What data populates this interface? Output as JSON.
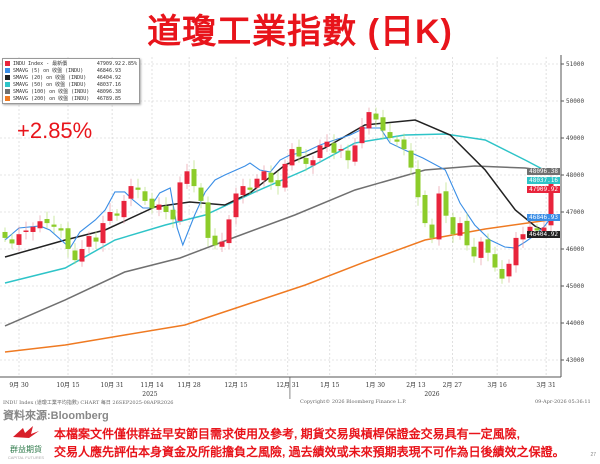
{
  "title": "道瓊工業指數 (日K)",
  "change_label": "+2.85%",
  "legend": [
    {
      "label": "INDU Index - 最新價",
      "value": "47909.92",
      "pct": "2.85%",
      "color": "#e8243c"
    },
    {
      "label": "SMAVG (5) on 收盤 (INDU)",
      "value": "46846.93",
      "pct": "",
      "color": "#3a8ee6"
    },
    {
      "label": "SMAVG (20) on 收盤 (INDU)",
      "value": "46404.92",
      "pct": "",
      "color": "#222222"
    },
    {
      "label": "SMAVG (50) on 收盤 (INDU)",
      "value": "48037.16",
      "pct": "",
      "color": "#2ec4c8"
    },
    {
      "label": "SMAVG (100) on 收盤 (INDU)",
      "value": "48096.38",
      "pct": "",
      "color": "#707070"
    },
    {
      "label": "SMAVG (200) on 收盤 (INDU)",
      "value": "46789.85",
      "pct": "",
      "color": "#ef7a22"
    }
  ],
  "price_tags": [
    {
      "text": "48096.38",
      "value": 48096.38,
      "color": "#707070"
    },
    {
      "text": "48037.16",
      "value": 48037.16,
      "color": "#2ec4c8"
    },
    {
      "text": "47909.92",
      "value": 47909.92,
      "color": "#e8243c"
    },
    {
      "text": "46846.93",
      "value": 46846.93,
      "color": "#3a8ee6"
    },
    {
      "text": "46404.92",
      "value": 46404.92,
      "color": "#222222"
    }
  ],
  "footer": {
    "chart_info": "INDU Index (道瓊工業平均指數) CHART 每日 26SEP2025-08APR2026",
    "copyright": "Copyright© 2026 Bloomberg Finance L.P.",
    "timestamp": "09-Apr-2026 05:36:11",
    "source": "資料來源:Bloomberg",
    "disclaimer1": "本檔案文件僅供群益早安節目需求使用及參考, 期貨交易與槓桿保證金交易具有一定風險,",
    "disclaimer2": "交易人應先評估本身資金及所能擔負之風險, 過去績效或未來預期表現不可作為日後績效之保證。",
    "logo_name": "群益期貨",
    "logo_en": "CAPITAL FUTURES",
    "page": "27"
  },
  "chart_data": {
    "type": "candlestick",
    "title": "道瓊工業指數 (日K)",
    "ylim": [
      42700,
      51200
    ],
    "yticks": [
      43000,
      44000,
      45000,
      46000,
      47000,
      48000,
      49000,
      50000,
      51000
    ],
    "xticks": [
      {
        "i": 2,
        "label": "9月 30"
      },
      {
        "i": 9,
        "label": "10月 15"
      },
      {
        "i": 15.3,
        "label": "10月 31"
      },
      {
        "i": 21,
        "label": "11月 14"
      },
      {
        "i": 26.3,
        "label": "11月 28"
      },
      {
        "i": 33,
        "label": "12月 15"
      },
      {
        "i": 40.4,
        "label": "12月 31"
      },
      {
        "i": 46.4,
        "label": "1月 15"
      },
      {
        "i": 52.9,
        "label": "1月 30"
      },
      {
        "i": 58.7,
        "label": "2月 13"
      },
      {
        "i": 63.9,
        "label": "2月 27"
      },
      {
        "i": 70.3,
        "label": "3月 16"
      },
      {
        "i": 77.3,
        "label": "3月 31"
      }
    ],
    "years": [
      {
        "i": 20.7,
        "label": "2025"
      },
      {
        "i": 61,
        "label": "2026"
      }
    ],
    "year_divider_i": 40.7,
    "closes": [
      46300,
      46150,
      46400,
      46500,
      46600,
      46750,
      46700,
      46600,
      46500,
      46000,
      45700,
      46000,
      46350,
      46200,
      46700,
      47000,
      46900,
      47300,
      47700,
      47600,
      47300,
      47100,
      47200,
      47000,
      46800,
      47800,
      48100,
      47700,
      47300,
      46300,
      46100,
      46200,
      46800,
      47500,
      47700,
      47600,
      47900,
      48100,
      47800,
      47700,
      48300,
      48700,
      48500,
      48300,
      48400,
      48800,
      48900,
      48600,
      48700,
      48400,
      48800,
      49300,
      49700,
      49500,
      49200,
      49000,
      48900,
      48700,
      48200,
      47400,
      46700,
      46300,
      47500,
      46900,
      46400,
      46700,
      46100,
      45800,
      46200,
      45900,
      45500,
      45200,
      45600,
      46300,
      46400,
      46600,
      46500,
      46580,
      47909.92
    ],
    "series": [
      {
        "name": "SMAVG (5)",
        "color": "#3a8ee6",
        "points": [
          [
            0,
            46243
          ],
          [
            2,
            46568
          ],
          [
            5,
            46622
          ],
          [
            6.4,
            46514
          ],
          [
            9.3,
            46027
          ],
          [
            10.7,
            46459
          ],
          [
            12.9,
            46784
          ],
          [
            14.3,
            47054
          ],
          [
            15.7,
            47541
          ],
          [
            17.1,
            47541
          ],
          [
            18.3,
            47324
          ],
          [
            19.7,
            47108
          ],
          [
            20.7,
            47108
          ],
          [
            22.1,
            47514
          ],
          [
            23.6,
            47649
          ],
          [
            24.6,
            46568
          ],
          [
            25.4,
            46108
          ],
          [
            27.1,
            46919
          ],
          [
            28.6,
            47541
          ],
          [
            30,
            47865
          ],
          [
            31.4,
            48000
          ],
          [
            34.3,
            48243
          ],
          [
            35,
            48324
          ],
          [
            36.4,
            48135
          ],
          [
            37.9,
            48081
          ],
          [
            39.3,
            48405
          ],
          [
            40.7,
            48541
          ],
          [
            42.9,
            48622
          ],
          [
            45,
            48811
          ],
          [
            47.1,
            48946
          ],
          [
            49.3,
            49081
          ],
          [
            51.4,
            49270
          ],
          [
            53.6,
            49270
          ],
          [
            55,
            48865
          ],
          [
            57.1,
            48676
          ],
          [
            59.7,
            48459
          ],
          [
            62.9,
            48135
          ],
          [
            65,
            47243
          ],
          [
            67.1,
            46649
          ],
          [
            69.3,
            46243
          ],
          [
            71.4,
            46054
          ],
          [
            72.9,
            46027
          ],
          [
            74.3,
            46189
          ],
          [
            75.7,
            46378
          ],
          [
            77.1,
            46622
          ],
          [
            78,
            46846.93
          ]
        ]
      },
      {
        "name": "SMAVG (20)",
        "color": "#222222",
        "points": [
          [
            0,
            45784
          ],
          [
            8.6,
            46243
          ],
          [
            14.3,
            46514
          ],
          [
            21.4,
            47135
          ],
          [
            26.4,
            47270
          ],
          [
            31.4,
            47189
          ],
          [
            35,
            47514
          ],
          [
            40,
            48270
          ],
          [
            45.7,
            48730
          ],
          [
            51.4,
            49351
          ],
          [
            58.6,
            49486
          ],
          [
            63.6,
            49081
          ],
          [
            68.6,
            48135
          ],
          [
            72.9,
            47054
          ],
          [
            75.7,
            46622
          ],
          [
            78,
            46404.92
          ]
        ]
      },
      {
        "name": "SMAVG (50)",
        "color": "#2ec4c8",
        "points": [
          [
            0,
            45081
          ],
          [
            8.6,
            45486
          ],
          [
            15.7,
            46243
          ],
          [
            22.9,
            46649
          ],
          [
            28.6,
            46919
          ],
          [
            35.7,
            47541
          ],
          [
            42.9,
            48135
          ],
          [
            50,
            48865
          ],
          [
            57.1,
            49081
          ],
          [
            62.9,
            49108
          ],
          [
            68.6,
            48946
          ],
          [
            74.3,
            48405
          ],
          [
            78,
            48037.16
          ]
        ]
      },
      {
        "name": "SMAVG (100)",
        "color": "#707070",
        "points": [
          [
            0,
            43919
          ],
          [
            8.6,
            44622
          ],
          [
            17.1,
            45378
          ],
          [
            25,
            45757
          ],
          [
            32.9,
            46324
          ],
          [
            41.4,
            46919
          ],
          [
            50,
            47595
          ],
          [
            60,
            48135
          ],
          [
            67.1,
            48243
          ],
          [
            74.3,
            48189
          ],
          [
            78,
            48096.38
          ]
        ]
      },
      {
        "name": "SMAVG (200)",
        "color": "#ef7a22",
        "points": [
          [
            0,
            43216
          ],
          [
            8.6,
            43405
          ],
          [
            17.1,
            43676
          ],
          [
            25.7,
            43946
          ],
          [
            34.3,
            44486
          ],
          [
            42.9,
            45027
          ],
          [
            51.4,
            45649
          ],
          [
            60,
            46243
          ],
          [
            68.6,
            46541
          ],
          [
            78,
            46789.85
          ]
        ]
      }
    ],
    "up_color": "#e8243c",
    "down_color": "#8ccc2a"
  }
}
